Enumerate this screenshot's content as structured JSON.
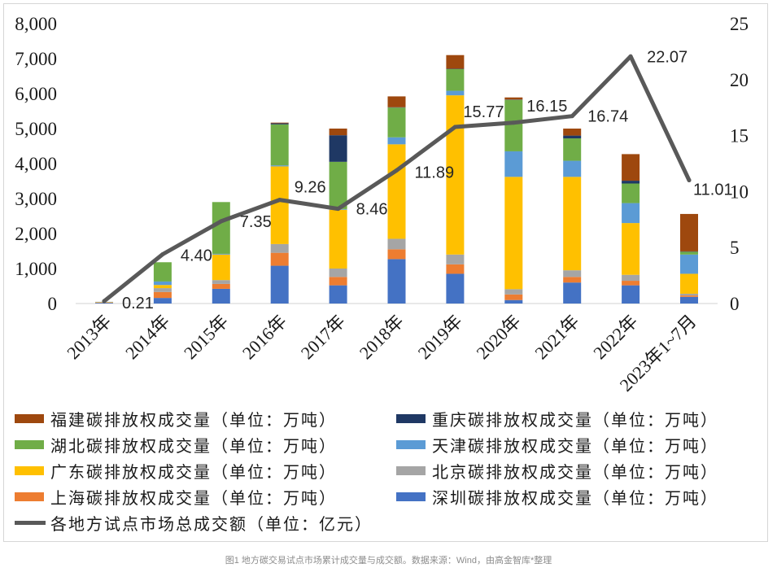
{
  "chart_data": {
    "type": "bar",
    "stacked": true,
    "categories": [
      "2013年",
      "2014年",
      "2015年",
      "2016年",
      "2017年",
      "2018年",
      "2019年",
      "2020年",
      "2021年",
      "2022年",
      "2023年1~7月"
    ],
    "y_left": {
      "min": 0,
      "max": 8000,
      "tick_labels": [
        "0",
        "1,000",
        "2,000",
        "3,000",
        "4,000",
        "5,000",
        "6,000",
        "7,000",
        "8,000"
      ]
    },
    "y_right": {
      "min": 0,
      "max": 25,
      "tick_labels": [
        "0",
        "5",
        "10",
        "15",
        "20",
        "25"
      ]
    },
    "series": [
      {
        "name": "深圳碳排放权成交量（单位：万吨）",
        "color": "#4472C4",
        "values": [
          20,
          160,
          420,
          1080,
          520,
          1270,
          850,
          100,
          600,
          520,
          190
        ]
      },
      {
        "name": "上海碳排放权成交量（单位：万吨）",
        "color": "#ED7D31",
        "values": [
          10,
          170,
          140,
          370,
          240,
          280,
          270,
          160,
          160,
          130,
          40
        ]
      },
      {
        "name": "北京碳排放权成交量（单位：万吨）",
        "color": "#A5A5A5",
        "values": [
          5,
          110,
          110,
          250,
          240,
          300,
          280,
          150,
          190,
          170,
          50
        ]
      },
      {
        "name": "广东碳排放权成交量（单位：万吨）",
        "color": "#FFC000",
        "values": [
          10,
          90,
          730,
          2220,
          1680,
          2700,
          4550,
          3210,
          2670,
          1480,
          570
        ]
      },
      {
        "name": "天津碳排放权成交量（单位：万吨）",
        "color": "#5B9BD5",
        "values": [
          5,
          100,
          20,
          30,
          20,
          200,
          130,
          730,
          460,
          570,
          550
        ]
      },
      {
        "name": "湖北碳排放权成交量（单位：万吨）",
        "color": "#70AD47",
        "values": [
          0,
          550,
          1480,
          1170,
          1350,
          850,
          620,
          1470,
          640,
          560,
          80
        ]
      },
      {
        "name": "重庆碳排放权成交量（单位：万吨）",
        "color": "#1F3864",
        "values": [
          0,
          0,
          0,
          30,
          760,
          10,
          10,
          10,
          80,
          80,
          10
        ]
      },
      {
        "name": "福建碳排放权成交量（单位：万吨）",
        "color": "#9E480E",
        "values": [
          0,
          0,
          0,
          20,
          190,
          310,
          390,
          60,
          200,
          760,
          1070
        ]
      }
    ],
    "line": {
      "name": "各地方试点市场总成交额（单位：亿元）",
      "color": "#595959",
      "axis": "right",
      "values": [
        0.21,
        4.4,
        7.35,
        9.26,
        8.46,
        11.89,
        15.77,
        16.15,
        16.74,
        22.07,
        11.01
      ],
      "labels": [
        "0.21",
        "4.40",
        "7.35",
        "9.26",
        "8.46",
        "11.89",
        "15.77",
        "16.15",
        "16.74",
        "22.07",
        "11.01"
      ]
    },
    "legend": "bottom",
    "grid": false
  },
  "caption": "图1 地方碳交易试点市场累计成交量与成交额。数据来源：Wind，由高金智库*整理"
}
